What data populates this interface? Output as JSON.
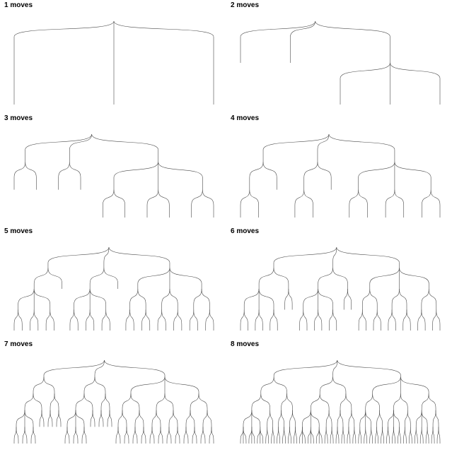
{
  "panels": [
    {
      "title": "1 moves",
      "tree": [
        1,
        1,
        1
      ]
    },
    {
      "title": "2 moves",
      "tree": [
        1,
        1,
        [
          1,
          1,
          1
        ]
      ]
    },
    {
      "title": "3 moves",
      "tree": [
        [
          1,
          1
        ],
        [
          1,
          1
        ],
        [
          [
            1,
            1
          ],
          [
            1,
            1
          ],
          [
            1,
            1
          ]
        ]
      ]
    },
    {
      "title": "4 moves",
      "tree": [
        [
          [
            1,
            1
          ],
          1
        ],
        [
          [
            1,
            1
          ],
          1
        ],
        [
          [
            1,
            1
          ],
          [
            1,
            1
          ],
          [
            1,
            1
          ]
        ]
      ]
    },
    {
      "title": "5 moves",
      "tree": [
        [
          [
            [
              1,
              1
            ],
            [
              1,
              1
            ],
            [
              1,
              1
            ]
          ],
          1
        ],
        [
          [
            [
              1,
              1
            ],
            [
              1,
              1
            ],
            [
              1,
              1
            ]
          ],
          1
        ],
        [
          [
            [
              1,
              1
            ],
            [
              1,
              1
            ]
          ],
          [
            [
              1,
              1
            ],
            [
              1,
              1
            ]
          ],
          [
            [
              1,
              1
            ],
            [
              1,
              1
            ]
          ]
        ]
      ]
    },
    {
      "title": "6 moves",
      "tree": [
        [
          [
            [
              1,
              1
            ],
            [
              1,
              1
            ],
            [
              1,
              1
            ]
          ],
          [
            1,
            1
          ]
        ],
        [
          [
            [
              1,
              1
            ],
            [
              1,
              1
            ],
            [
              1,
              1
            ]
          ],
          [
            1,
            1
          ]
        ],
        [
          [
            [
              1,
              1
            ],
            [
              1,
              1
            ]
          ],
          [
            [
              1,
              1
            ],
            [
              1,
              1
            ]
          ],
          [
            [
              1,
              1
            ],
            [
              1,
              1
            ]
          ]
        ]
      ]
    },
    {
      "title": "7 moves",
      "tree": [
        [
          [
            [
              [
                1,
                1
              ],
              [
                1,
                1
              ],
              [
                1,
                1
              ]
            ],
            [
              1,
              1
            ]
          ],
          [
            [
              1,
              1
            ],
            [
              1,
              1
            ]
          ]
        ],
        [
          [
            [
              [
                1,
                1
              ],
              [
                1,
                1
              ],
              [
                1,
                1
              ]
            ],
            [
              1,
              1
            ]
          ],
          [
            [
              1,
              1
            ],
            [
              1,
              1
            ]
          ]
        ],
        [
          [
            [
              [
                1,
                1
              ],
              [
                1,
                1
              ]
            ],
            [
              [
                1,
                1
              ],
              [
                1,
                1
              ]
            ]
          ],
          [
            [
              [
                1,
                1
              ],
              [
                1,
                1
              ]
            ],
            [
              [
                1,
                1
              ],
              [
                1,
                1
              ]
            ]
          ],
          [
            [
              [
                1,
                1
              ],
              [
                1,
                1
              ]
            ],
            [
              [
                1,
                1
              ],
              [
                1,
                1
              ]
            ]
          ]
        ]
      ]
    },
    {
      "title": "8 moves",
      "tree": [
        [
          [
            [
              [
                1,
                1,
                1
              ],
              [
                1,
                1,
                1
              ],
              [
                1,
                1,
                1
              ]
            ],
            [
              [
                1,
                1
              ],
              [
                1,
                1
              ]
            ]
          ],
          [
            [
              [
                1,
                1
              ],
              [
                1,
                1
              ]
            ],
            [
              [
                1,
                1
              ],
              [
                1,
                1
              ]
            ]
          ]
        ],
        [
          [
            [
              [
                1,
                1,
                1
              ],
              [
                1,
                1,
                1
              ],
              [
                1,
                1,
                1
              ]
            ],
            [
              [
                1,
                1
              ],
              [
                1,
                1
              ]
            ]
          ],
          [
            [
              [
                1,
                1
              ],
              [
                1,
                1
              ]
            ],
            [
              [
                1,
                1
              ],
              [
                1,
                1
              ]
            ]
          ]
        ],
        [
          [
            [
              [
                1,
                1
              ],
              [
                1,
                1
              ],
              [
                1,
                1
              ]
            ],
            [
              [
                1,
                1
              ],
              [
                1,
                1
              ]
            ]
          ],
          [
            [
              [
                1,
                1
              ],
              [
                1,
                1
              ],
              [
                1,
                1
              ]
            ],
            [
              [
                1,
                1
              ],
              [
                1,
                1
              ]
            ]
          ],
          [
            [
              [
                1,
                1
              ],
              [
                1,
                1
              ],
              [
                1,
                1
              ]
            ],
            [
              [
                1,
                1
              ],
              [
                1,
                1
              ]
            ]
          ]
        ]
      ]
    }
  ]
}
